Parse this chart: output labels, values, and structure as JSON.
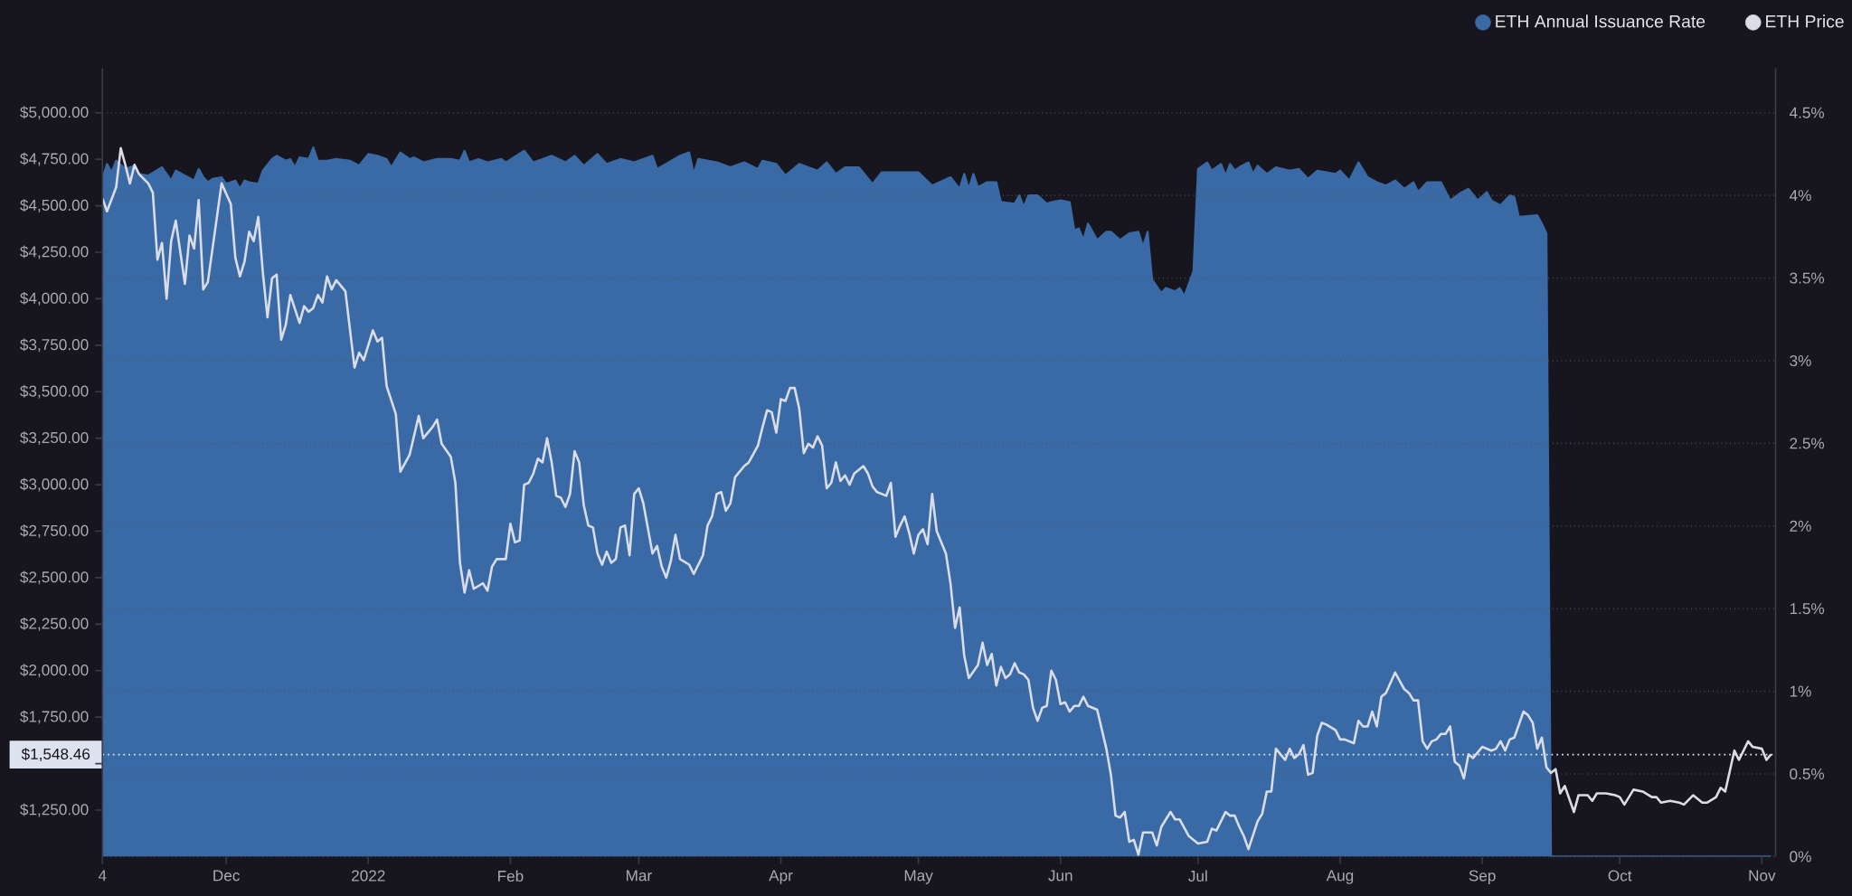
{
  "chart_data": {
    "type": "line",
    "xlim": [
      "2021-11-04",
      "2022-11-04"
    ],
    "xticks": [
      {
        "value": "2021-11-04",
        "label": "4"
      },
      {
        "value": "2021-12-01",
        "label": "Dec"
      },
      {
        "value": "2022-01-01",
        "label": "2022"
      },
      {
        "value": "2022-02-01",
        "label": "Feb"
      },
      {
        "value": "2022-03-01",
        "label": "Mar"
      },
      {
        "value": "2022-04-01",
        "label": "Apr"
      },
      {
        "value": "2022-05-01",
        "label": "May"
      },
      {
        "value": "2022-06-01",
        "label": "Jun"
      },
      {
        "value": "2022-07-01",
        "label": "Jul"
      },
      {
        "value": "2022-08-01",
        "label": "Aug"
      },
      {
        "value": "2022-09-01",
        "label": "Sep"
      },
      {
        "value": "2022-10-01",
        "label": "Oct"
      },
      {
        "value": "2022-11-01",
        "label": "Nov"
      }
    ],
    "ylim": [
      1000,
      5240
    ],
    "yticks": [
      {
        "value": 1250,
        "label": "$1,250.00"
      },
      {
        "value": 1500,
        "label": null
      },
      {
        "value": 1750,
        "label": "$1,750.00"
      },
      {
        "value": 2000,
        "label": "$2,000.00"
      },
      {
        "value": 2250,
        "label": "$2,250.00"
      },
      {
        "value": 2500,
        "label": "$2,500.00"
      },
      {
        "value": 2750,
        "label": "$2,750.00"
      },
      {
        "value": 3000,
        "label": "$3,000.00"
      },
      {
        "value": 3250,
        "label": "$3,250.00"
      },
      {
        "value": 3500,
        "label": "$3,500.00"
      },
      {
        "value": 3750,
        "label": "$3,750.00"
      },
      {
        "value": 4000,
        "label": "$4,000.00"
      },
      {
        "value": 4250,
        "label": "$4,250.00"
      },
      {
        "value": 4500,
        "label": "$4,500.00"
      },
      {
        "value": 4750,
        "label": "$4,750.00"
      },
      {
        "value": 5000,
        "label": "$5,000.00"
      }
    ],
    "y2lim": [
      0,
      4.77
    ],
    "y2ticks": [
      {
        "value": 0,
        "label": "0%"
      },
      {
        "value": 0.5,
        "label": "0.5%"
      },
      {
        "value": 1,
        "label": "1%"
      },
      {
        "value": 1.5,
        "label": "1.5%"
      },
      {
        "value": 2,
        "label": "2%"
      },
      {
        "value": 2.5,
        "label": "2.5%"
      },
      {
        "value": 3,
        "label": "3%"
      },
      {
        "value": 3.5,
        "label": "3.5%"
      },
      {
        "value": 4,
        "label": "4%"
      },
      {
        "value": 4.5,
        "label": "4.5%"
      }
    ],
    "grid": "y2",
    "legend": "top right",
    "line_style": "solid",
    "ref_lines": [
      {
        "axis": "y",
        "value": 1548.46,
        "label": "$1,548.46",
        "color": "#dde3ee",
        "line_style": "dotted"
      }
    ],
    "series": [
      {
        "name": "ETH Annual Issuance Rate",
        "type": "area",
        "axis": "y2",
        "color": "#3a6aa6",
        "x": [
          "2021-11-04",
          "2021-11-05",
          "2021-11-06",
          "2021-11-07",
          "2021-11-09",
          "2021-11-11",
          "2021-11-12",
          "2021-11-14",
          "2021-11-17",
          "2021-11-19",
          "2021-11-20",
          "2021-11-22",
          "2021-11-24",
          "2021-11-25",
          "2021-11-26",
          "2021-11-27",
          "2021-11-28",
          "2021-11-30",
          "2021-12-01",
          "2021-12-03",
          "2021-12-04",
          "2021-12-05",
          "2021-12-06",
          "2021-12-08",
          "2021-12-09",
          "2021-12-11",
          "2021-12-12",
          "2021-12-14",
          "2021-12-15",
          "2021-12-16",
          "2021-12-17",
          "2021-12-19",
          "2021-12-20",
          "2021-12-21",
          "2021-12-23",
          "2021-12-25",
          "2021-12-28",
          "2021-12-30",
          "2022-01-01",
          "2022-01-03",
          "2022-01-05",
          "2022-01-06",
          "2022-01-08",
          "2022-01-10",
          "2022-01-11",
          "2022-01-13",
          "2022-01-16",
          "2022-01-19",
          "2022-01-21",
          "2022-01-22",
          "2022-01-23",
          "2022-01-25",
          "2022-01-27",
          "2022-01-30",
          "2022-01-31",
          "2022-02-04",
          "2022-02-06",
          "2022-02-08",
          "2022-02-10",
          "2022-02-13",
          "2022-02-15",
          "2022-02-17",
          "2022-02-20",
          "2022-02-22",
          "2022-02-25",
          "2022-02-28",
          "2022-03-04",
          "2022-03-05",
          "2022-03-10",
          "2022-03-12",
          "2022-03-13",
          "2022-03-14",
          "2022-03-18",
          "2022-03-21",
          "2022-03-24",
          "2022-03-27",
          "2022-03-28",
          "2022-03-31",
          "2022-04-02",
          "2022-04-05",
          "2022-04-09",
          "2022-04-11",
          "2022-04-13",
          "2022-04-15",
          "2022-04-18",
          "2022-04-21",
          "2022-04-23",
          "2022-04-27",
          "2022-05-01",
          "2022-05-04",
          "2022-05-08",
          "2022-05-10",
          "2022-05-11",
          "2022-05-12",
          "2022-05-13",
          "2022-05-14",
          "2022-05-16",
          "2022-05-18",
          "2022-05-19",
          "2022-05-22",
          "2022-05-23",
          "2022-05-24",
          "2022-05-25",
          "2022-05-27",
          "2022-05-29",
          "2022-05-30",
          "2022-06-01",
          "2022-06-03",
          "2022-06-04",
          "2022-06-05",
          "2022-06-06",
          "2022-06-07",
          "2022-06-09",
          "2022-06-11",
          "2022-06-12",
          "2022-06-14",
          "2022-06-16",
          "2022-06-18",
          "2022-06-19",
          "2022-06-20",
          "2022-06-21",
          "2022-06-23",
          "2022-06-24",
          "2022-06-26",
          "2022-06-27",
          "2022-06-28",
          "2022-06-30",
          "2022-07-01",
          "2022-07-03",
          "2022-07-04",
          "2022-07-06",
          "2022-07-07",
          "2022-07-08",
          "2022-07-09",
          "2022-07-10",
          "2022-07-12",
          "2022-07-13",
          "2022-07-14",
          "2022-07-16",
          "2022-07-18",
          "2022-07-21",
          "2022-07-23",
          "2022-07-25",
          "2022-07-27",
          "2022-07-31",
          "2022-08-01",
          "2022-08-03",
          "2022-08-05",
          "2022-08-07",
          "2022-08-09",
          "2022-08-11",
          "2022-08-13",
          "2022-08-15",
          "2022-08-17",
          "2022-08-18",
          "2022-08-20",
          "2022-08-23",
          "2022-08-25",
          "2022-08-27",
          "2022-08-29",
          "2022-08-31",
          "2022-09-02",
          "2022-09-03",
          "2022-09-05",
          "2022-09-07",
          "2022-09-08",
          "2022-09-09",
          "2022-09-13",
          "2022-09-14",
          "2022-09-15",
          "2022-09-16",
          "2022-11-03"
        ],
        "values": [
          4.1,
          4.19,
          4.14,
          4.21,
          4.16,
          4.18,
          4.13,
          4.12,
          4.17,
          4.09,
          4.15,
          4.12,
          4.09,
          4.16,
          4.11,
          4.08,
          4.1,
          4.11,
          4.07,
          4.09,
          4.04,
          4.09,
          4.08,
          4.07,
          4.15,
          4.22,
          4.24,
          4.21,
          4.22,
          4.17,
          4.23,
          4.22,
          4.29,
          4.21,
          4.21,
          4.22,
          4.21,
          4.18,
          4.25,
          4.24,
          4.22,
          4.17,
          4.26,
          4.22,
          4.23,
          4.2,
          4.22,
          4.22,
          4.21,
          4.27,
          4.2,
          4.22,
          4.2,
          4.22,
          4.2,
          4.27,
          4.2,
          4.22,
          4.24,
          4.2,
          4.24,
          4.18,
          4.25,
          4.19,
          4.22,
          4.2,
          4.24,
          4.16,
          4.24,
          4.26,
          4.13,
          4.22,
          4.2,
          4.17,
          4.2,
          4.16,
          4.21,
          4.19,
          4.12,
          4.19,
          4.15,
          4.2,
          4.13,
          4.17,
          4.17,
          4.07,
          4.14,
          4.14,
          4.14,
          4.06,
          4.11,
          4.04,
          4.13,
          4.04,
          4.13,
          4.05,
          4.08,
          4.08,
          3.96,
          3.95,
          4.0,
          3.93,
          4.0,
          4.0,
          3.95,
          3.96,
          3.97,
          3.96,
          3.79,
          3.8,
          3.73,
          3.83,
          3.73,
          3.78,
          3.78,
          3.73,
          3.77,
          3.78,
          3.69,
          3.78,
          3.49,
          3.41,
          3.44,
          3.42,
          3.44,
          3.39,
          3.54,
          4.16,
          4.2,
          4.15,
          4.19,
          4.12,
          4.19,
          4.15,
          4.17,
          4.2,
          4.13,
          4.18,
          4.13,
          4.17,
          4.15,
          4.16,
          4.1,
          4.15,
          4.13,
          4.15,
          4.09,
          4.2,
          4.11,
          4.08,
          4.06,
          4.09,
          4.04,
          4.08,
          4.02,
          4.08,
          4.08,
          3.97,
          4.01,
          4.04,
          3.97,
          4.02,
          3.97,
          3.94,
          4.0,
          3.99,
          3.87,
          3.88,
          3.83,
          3.77,
          0,
          0
        ]
      },
      {
        "name": "ETH Price",
        "color": "#dadde5",
        "x": [
          "2021-11-04",
          "2021-11-05",
          "2021-11-07",
          "2021-11-08",
          "2021-11-09",
          "2021-11-10",
          "2021-11-11",
          "2021-11-12",
          "2021-11-14",
          "2021-11-15",
          "2021-11-16",
          "2021-11-17",
          "2021-11-18",
          "2021-11-19",
          "2021-11-20",
          "2021-11-22",
          "2021-11-23",
          "2021-11-24",
          "2021-11-25",
          "2021-11-26",
          "2021-11-27",
          "2021-11-30",
          "2021-12-02",
          "2021-12-03",
          "2021-12-04",
          "2021-12-05",
          "2021-12-06",
          "2021-12-07",
          "2021-12-08",
          "2021-12-09",
          "2021-12-10",
          "2021-12-11",
          "2021-12-12",
          "2021-12-13",
          "2021-12-14",
          "2021-12-15",
          "2021-12-17",
          "2021-12-18",
          "2021-12-19",
          "2021-12-20",
          "2021-12-21",
          "2021-12-22",
          "2021-12-23",
          "2021-12-24",
          "2021-12-25",
          "2021-12-27",
          "2021-12-29",
          "2021-12-30",
          "2021-12-31",
          "2022-01-02",
          "2022-01-03",
          "2022-01-04",
          "2022-01-05",
          "2022-01-07",
          "2022-01-08",
          "2022-01-10",
          "2022-01-12",
          "2022-01-13",
          "2022-01-15",
          "2022-01-16",
          "2022-01-17",
          "2022-01-19",
          "2022-01-20",
          "2022-01-21",
          "2022-01-22",
          "2022-01-23",
          "2022-01-24",
          "2022-01-26",
          "2022-01-27",
          "2022-01-28",
          "2022-01-29",
          "2022-01-31",
          "2022-02-01",
          "2022-02-02",
          "2022-02-03",
          "2022-02-04",
          "2022-02-05",
          "2022-02-06",
          "2022-02-07",
          "2022-02-08",
          "2022-02-09",
          "2022-02-10",
          "2022-02-11",
          "2022-02-12",
          "2022-02-13",
          "2022-02-14",
          "2022-02-15",
          "2022-02-16",
          "2022-02-17",
          "2022-02-18",
          "2022-02-19",
          "2022-02-20",
          "2022-02-21",
          "2022-02-22",
          "2022-02-23",
          "2022-02-24",
          "2022-02-25",
          "2022-02-26",
          "2022-02-27",
          "2022-02-28",
          "2022-03-01",
          "2022-03-02",
          "2022-03-04",
          "2022-03-05",
          "2022-03-06",
          "2022-03-07",
          "2022-03-08",
          "2022-03-09",
          "2022-03-10",
          "2022-03-12",
          "2022-03-13",
          "2022-03-15",
          "2022-03-16",
          "2022-03-17",
          "2022-03-18",
          "2022-03-19",
          "2022-03-20",
          "2022-03-21",
          "2022-03-22",
          "2022-03-24",
          "2022-03-25",
          "2022-03-27",
          "2022-03-28",
          "2022-03-29",
          "2022-03-30",
          "2022-03-31",
          "2022-04-01",
          "2022-04-02",
          "2022-04-03",
          "2022-04-04",
          "2022-04-05",
          "2022-04-06",
          "2022-04-07",
          "2022-04-08",
          "2022-04-09",
          "2022-04-10",
          "2022-04-11",
          "2022-04-12",
          "2022-04-13",
          "2022-04-14",
          "2022-04-15",
          "2022-04-16",
          "2022-04-17",
          "2022-04-19",
          "2022-04-20",
          "2022-04-21",
          "2022-04-22",
          "2022-04-24",
          "2022-04-25",
          "2022-04-26",
          "2022-04-27",
          "2022-04-28",
          "2022-04-29",
          "2022-04-30",
          "2022-05-01",
          "2022-05-02",
          "2022-05-03",
          "2022-05-04",
          "2022-05-05",
          "2022-05-06",
          "2022-05-07",
          "2022-05-08",
          "2022-05-09",
          "2022-05-10",
          "2022-05-11",
          "2022-05-12",
          "2022-05-14",
          "2022-05-15",
          "2022-05-16",
          "2022-05-17",
          "2022-05-18",
          "2022-05-19",
          "2022-05-20",
          "2022-05-21",
          "2022-05-22",
          "2022-05-23",
          "2022-05-24",
          "2022-05-25",
          "2022-05-26",
          "2022-05-27",
          "2022-05-28",
          "2022-05-29",
          "2022-05-30",
          "2022-05-31",
          "2022-06-01",
          "2022-06-02",
          "2022-06-03",
          "2022-06-04",
          "2022-06-05",
          "2022-06-06",
          "2022-06-07",
          "2022-06-09",
          "2022-06-11",
          "2022-06-12",
          "2022-06-13",
          "2022-06-14",
          "2022-06-15",
          "2022-06-16",
          "2022-06-17",
          "2022-06-18",
          "2022-06-19",
          "2022-06-21",
          "2022-06-22",
          "2022-06-23",
          "2022-06-25",
          "2022-06-26",
          "2022-06-27",
          "2022-06-29",
          "2022-07-01",
          "2022-07-03",
          "2022-07-04",
          "2022-07-05",
          "2022-07-07",
          "2022-07-08",
          "2022-07-09",
          "2022-07-10",
          "2022-07-11",
          "2022-07-12",
          "2022-07-14",
          "2022-07-15",
          "2022-07-16",
          "2022-07-17",
          "2022-07-18",
          "2022-07-19",
          "2022-07-20",
          "2022-07-21",
          "2022-07-22",
          "2022-07-23",
          "2022-07-24",
          "2022-07-25",
          "2022-07-26",
          "2022-07-27",
          "2022-07-28",
          "2022-07-29",
          "2022-07-31",
          "2022-08-01",
          "2022-08-02",
          "2022-08-04",
          "2022-08-05",
          "2022-08-06",
          "2022-08-07",
          "2022-08-08",
          "2022-08-09",
          "2022-08-10",
          "2022-08-11",
          "2022-08-13",
          "2022-08-15",
          "2022-08-16",
          "2022-08-17",
          "2022-08-18",
          "2022-08-19",
          "2022-08-20",
          "2022-08-21",
          "2022-08-22",
          "2022-08-23",
          "2022-08-24",
          "2022-08-25",
          "2022-08-26",
          "2022-08-27",
          "2022-08-28",
          "2022-08-29",
          "2022-08-30",
          "2022-09-01",
          "2022-09-03",
          "2022-09-04",
          "2022-09-05",
          "2022-09-06",
          "2022-09-07",
          "2022-09-08",
          "2022-09-10",
          "2022-09-11",
          "2022-09-12",
          "2022-09-13",
          "2022-09-14",
          "2022-09-15",
          "2022-09-16",
          "2022-09-17",
          "2022-09-18",
          "2022-09-19",
          "2022-09-21",
          "2022-09-22",
          "2022-09-24",
          "2022-09-25",
          "2022-09-26",
          "2022-09-28",
          "2022-09-30",
          "2022-10-01",
          "2022-10-02",
          "2022-10-04",
          "2022-10-06",
          "2022-10-08",
          "2022-10-09",
          "2022-10-10",
          "2022-10-12",
          "2022-10-14",
          "2022-10-15",
          "2022-10-17",
          "2022-10-19",
          "2022-10-20",
          "2022-10-22",
          "2022-10-23",
          "2022-10-24",
          "2022-10-26",
          "2022-10-27",
          "2022-10-29",
          "2022-10-30",
          "2022-11-01",
          "2022-11-02",
          "2022-11-03"
        ],
        "values": [
          4540,
          4470,
          4600,
          4810,
          4720,
          4620,
          4720,
          4670,
          4620,
          4570,
          4210,
          4300,
          4000,
          4310,
          4420,
          4080,
          4340,
          4270,
          4530,
          4050,
          4090,
          4620,
          4510,
          4220,
          4120,
          4200,
          4360,
          4310,
          4440,
          4140,
          3900,
          4110,
          4130,
          3780,
          3860,
          4020,
          3870,
          3960,
          3930,
          3950,
          4020,
          3980,
          4120,
          4050,
          4100,
          4040,
          3630,
          3710,
          3670,
          3830,
          3770,
          3790,
          3530,
          3380,
          3070,
          3160,
          3370,
          3250,
          3310,
          3350,
          3220,
          3150,
          3010,
          2580,
          2420,
          2540,
          2440,
          2470,
          2430,
          2560,
          2600,
          2600,
          2790,
          2690,
          2700,
          3000,
          3010,
          3060,
          3140,
          3120,
          3250,
          3120,
          2940,
          2930,
          2880,
          2950,
          3180,
          3120,
          2890,
          2780,
          2770,
          2630,
          2570,
          2640,
          2580,
          2600,
          2770,
          2780,
          2620,
          2950,
          2980,
          2900,
          2630,
          2670,
          2560,
          2500,
          2590,
          2730,
          2600,
          2570,
          2520,
          2620,
          2780,
          2830,
          2950,
          2960,
          2860,
          2900,
          3040,
          3100,
          3120,
          3210,
          3310,
          3400,
          3390,
          3280,
          3460,
          3450,
          3520,
          3520,
          3410,
          3170,
          3220,
          3200,
          3260,
          3210,
          2980,
          3010,
          3120,
          3020,
          3050,
          3000,
          3060,
          3100,
          3060,
          2990,
          2960,
          2940,
          3010,
          2720,
          2780,
          2830,
          2740,
          2630,
          2730,
          2760,
          2680,
          2950,
          2750,
          2690,
          2630,
          2470,
          2230,
          2340,
          2080,
          1960,
          2030,
          2150,
          2030,
          2090,
          1920,
          2020,
          1960,
          1980,
          2040,
          1990,
          1980,
          1950,
          1800,
          1730,
          1800,
          1810,
          2000,
          1950,
          1820,
          1830,
          1780,
          1810,
          1810,
          1860,
          1810,
          1790,
          1580,
          1440,
          1220,
          1210,
          1240,
          1080,
          1090,
          1010,
          1130,
          1130,
          1060,
          1160,
          1240,
          1200,
          1200,
          1110,
          1070,
          1080,
          1150,
          1140,
          1240,
          1220,
          1220,
          1160,
          1110,
          1040,
          1190,
          1230,
          1350,
          1350,
          1580,
          1550,
          1520,
          1580,
          1530,
          1550,
          1600,
          1440,
          1450,
          1650,
          1720,
          1710,
          1680,
          1630,
          1630,
          1610,
          1730,
          1700,
          1700,
          1780,
          1700,
          1860,
          1880,
          1990,
          1900,
          1880,
          1840,
          1840,
          1620,
          1580,
          1620,
          1630,
          1660,
          1660,
          1700,
          1510,
          1490,
          1420,
          1550,
          1530,
          1590,
          1570,
          1580,
          1620,
          1570,
          1630,
          1640,
          1780,
          1760,
          1720,
          1580,
          1640,
          1480,
          1450,
          1470,
          1340,
          1380,
          1240,
          1330,
          1330,
          1300,
          1340,
          1340,
          1330,
          1320,
          1280,
          1360,
          1350,
          1320,
          1320,
          1290,
          1300,
          1290,
          1280,
          1330,
          1290,
          1290,
          1320,
          1370,
          1350,
          1570,
          1520,
          1620,
          1590,
          1580,
          1520,
          1550
        ]
      }
    ]
  }
}
